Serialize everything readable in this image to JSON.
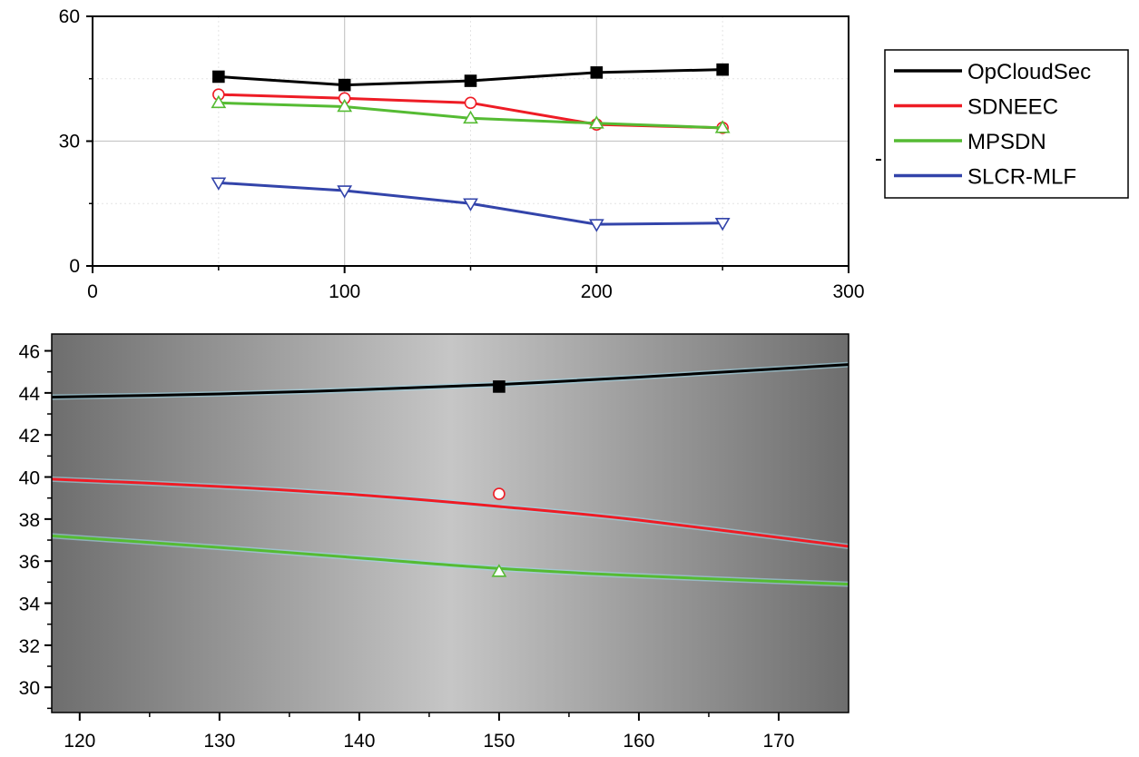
{
  "chart_data": [
    {
      "type": "line",
      "title": "",
      "xlabel": "",
      "ylabel": "",
      "xlim": [
        0,
        300
      ],
      "ylim": [
        0,
        60
      ],
      "xticks": [
        0,
        100,
        200,
        300
      ],
      "yticks": [
        0,
        30,
        60
      ],
      "grid": true,
      "legend": "right",
      "x": [
        50,
        100,
        150,
        200,
        250
      ],
      "series": [
        {
          "name": "OpCloudSec",
          "color": "#000000",
          "marker": "square",
          "values": [
            45.5,
            43.5,
            44.5,
            46.5,
            47.2
          ]
        },
        {
          "name": "SDNEEC",
          "color": "#ee1c25",
          "marker": "circle",
          "values": [
            41.2,
            40.3,
            39.2,
            34.0,
            33.2
          ]
        },
        {
          "name": "MPSDN",
          "color": "#55bb33",
          "marker": "triangle-up",
          "values": [
            39.2,
            38.3,
            35.5,
            34.3,
            33.2
          ]
        },
        {
          "name": "SLCR-MLF",
          "color": "#3344aa",
          "marker": "triangle-down",
          "values": [
            20.0,
            18.1,
            15.0,
            10.0,
            10.3
          ]
        }
      ]
    },
    {
      "type": "line",
      "title": "",
      "xlabel": "",
      "ylabel": "",
      "xlim": [
        118,
        175
      ],
      "ylim": [
        28.8,
        46.8
      ],
      "xticks": [
        120,
        130,
        140,
        150,
        160,
        170
      ],
      "yticks": [
        30,
        32,
        34,
        36,
        38,
        40,
        42,
        44,
        46
      ],
      "grid": false,
      "background": "gradient",
      "points": [
        {
          "series": "OpCloudSec",
          "x": 150,
          "y": 44.3
        },
        {
          "series": "SDNEEC",
          "x": 150,
          "y": 39.2
        },
        {
          "series": "MPSDN",
          "x": 150,
          "y": 35.5
        }
      ],
      "curves": [
        {
          "series": "OpCloudSec",
          "color": "#000000",
          "x": [
            118,
            130,
            140,
            150,
            160,
            175
          ],
          "y": [
            43.8,
            43.95,
            44.15,
            44.4,
            44.75,
            45.35
          ]
        },
        {
          "series": "SDNEEC",
          "color": "#ee1c25",
          "x": [
            118,
            130,
            140,
            150,
            160,
            175
          ],
          "y": [
            39.9,
            39.55,
            39.15,
            38.6,
            37.95,
            36.7
          ]
        },
        {
          "series": "MPSDN",
          "color": "#55bb33",
          "x": [
            118,
            130,
            140,
            150,
            160,
            175
          ],
          "y": [
            37.2,
            36.65,
            36.15,
            35.65,
            35.3,
            34.9
          ]
        }
      ]
    }
  ]
}
